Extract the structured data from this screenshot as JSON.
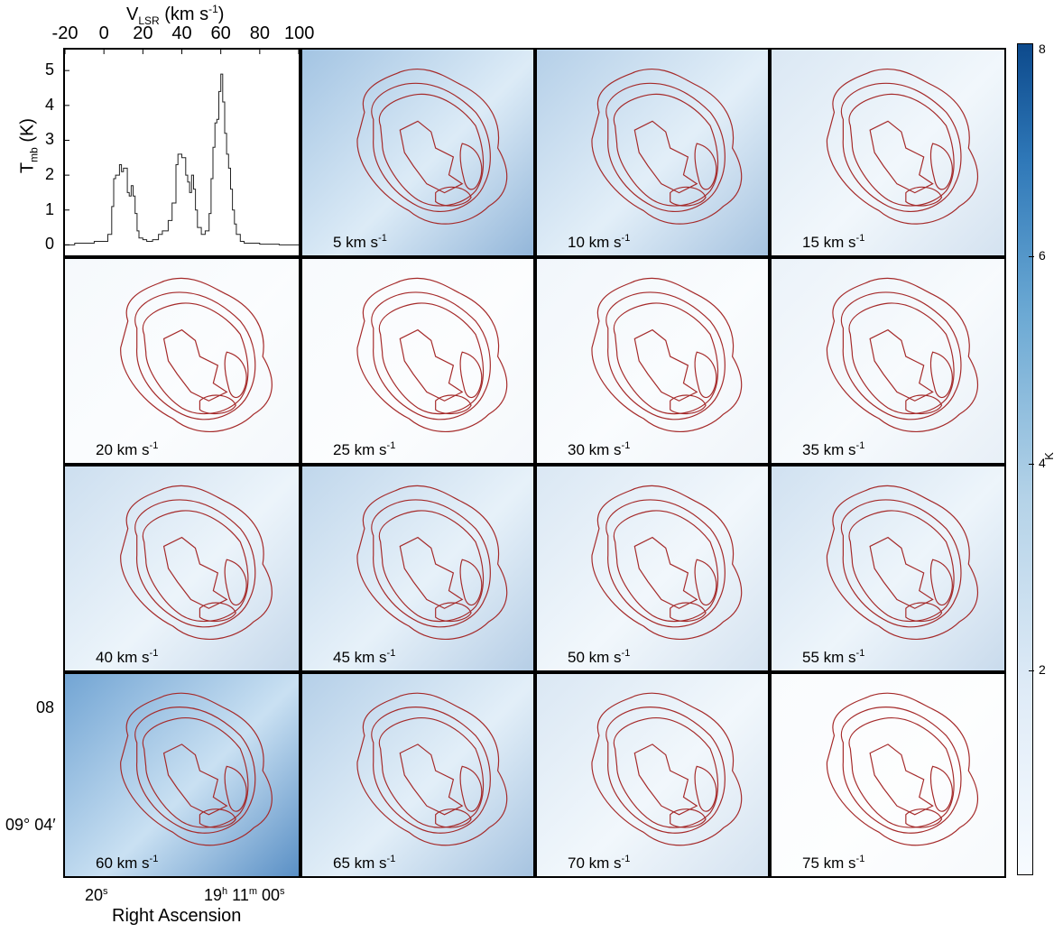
{
  "spectrum": {
    "top_axis_label": "V",
    "top_axis_sub": "LSR",
    "top_axis_unit": " (km s",
    "top_axis_unit_exp": "-1",
    "top_axis_close": ")",
    "y_axis_label": "T",
    "y_axis_sub": "mb",
    "y_axis_unit": " (K)"
  },
  "chart_data": {
    "type": "line",
    "x": [
      -20,
      -15,
      -10,
      -5,
      0,
      2,
      4,
      5,
      6,
      8,
      9,
      10,
      12,
      13,
      14,
      15,
      16,
      17,
      18,
      20,
      22,
      25,
      28,
      30,
      32,
      33,
      35,
      37,
      38,
      40,
      42,
      43,
      44,
      45,
      46,
      47,
      48,
      50,
      52,
      54,
      55,
      56,
      57,
      58,
      59,
      60,
      61,
      62,
      63,
      64,
      65,
      66,
      67,
      68,
      70,
      72,
      75,
      80,
      90,
      100
    ],
    "values": [
      0.0,
      0.05,
      0.05,
      0.1,
      0.1,
      0.3,
      1.1,
      1.9,
      2.0,
      2.3,
      2.1,
      2.2,
      1.5,
      1.4,
      1.7,
      1.4,
      0.9,
      0.4,
      0.2,
      0.15,
      0.1,
      0.15,
      0.3,
      0.4,
      0.4,
      0.7,
      1.2,
      2.3,
      2.6,
      2.5,
      2.0,
      1.8,
      1.5,
      2.0,
      1.6,
      1.0,
      0.5,
      0.3,
      0.4,
      0.9,
      1.9,
      2.8,
      3.5,
      3.6,
      4.4,
      4.9,
      4.1,
      3.2,
      2.6,
      2.2,
      1.6,
      1.0,
      0.6,
      0.3,
      0.1,
      0.05,
      0.05,
      0.02,
      0.0,
      0.0
    ],
    "xlim": [
      -20,
      100
    ],
    "ylim": [
      -0.3,
      5.6
    ],
    "x_ticks": [
      "-20",
      "0",
      "20",
      "40",
      "60",
      "80",
      "100"
    ],
    "y_ticks": [
      "0",
      "1",
      "2",
      "3",
      "4",
      "5"
    ],
    "xlabel": "V LSR (km s-1)",
    "ylabel": "Tmb (K)"
  },
  "channels": [
    {
      "label": "5 km s",
      "intensity": 0.55
    },
    {
      "label": "10 km s",
      "intensity": 0.45
    },
    {
      "label": "15 km s",
      "intensity": 0.22
    },
    {
      "label": "20 km s",
      "intensity": 0.06
    },
    {
      "label": "25 km s",
      "intensity": 0.05
    },
    {
      "label": "30 km s",
      "intensity": 0.08
    },
    {
      "label": "35 km s",
      "intensity": 0.12
    },
    {
      "label": "40 km s",
      "intensity": 0.3
    },
    {
      "label": "45 km s",
      "intensity": 0.38
    },
    {
      "label": "50 km s",
      "intensity": 0.22
    },
    {
      "label": "55 km s",
      "intensity": 0.28
    },
    {
      "label": "60 km s",
      "intensity": 0.85
    },
    {
      "label": "65 km s",
      "intensity": 0.45
    },
    {
      "label": "70 km s",
      "intensity": 0.22
    },
    {
      "label": "75 km s",
      "intensity": 0.04
    }
  ],
  "channel_unit_exp": "-1",
  "axes": {
    "dec_ticks": [
      "08",
      "09° 04′"
    ],
    "ra_ticks": {
      "tick1": "20",
      "tick1_sup": "s",
      "tick2_h": "19",
      "tick2_h_sup": "h",
      "tick2_m": " 11",
      "tick2_m_sup": "m",
      "tick2_s": " 00",
      "tick2_s_sup": "s"
    },
    "ra_label": "Right Ascension"
  },
  "colorbar": {
    "ticks": [
      "8",
      "6",
      "4",
      "2"
    ],
    "unit": "K",
    "range": [
      0,
      8
    ],
    "colors": {
      "low": "#f7fbff",
      "high": "#0d4a8c"
    }
  },
  "contour_color": "#a52a2a"
}
